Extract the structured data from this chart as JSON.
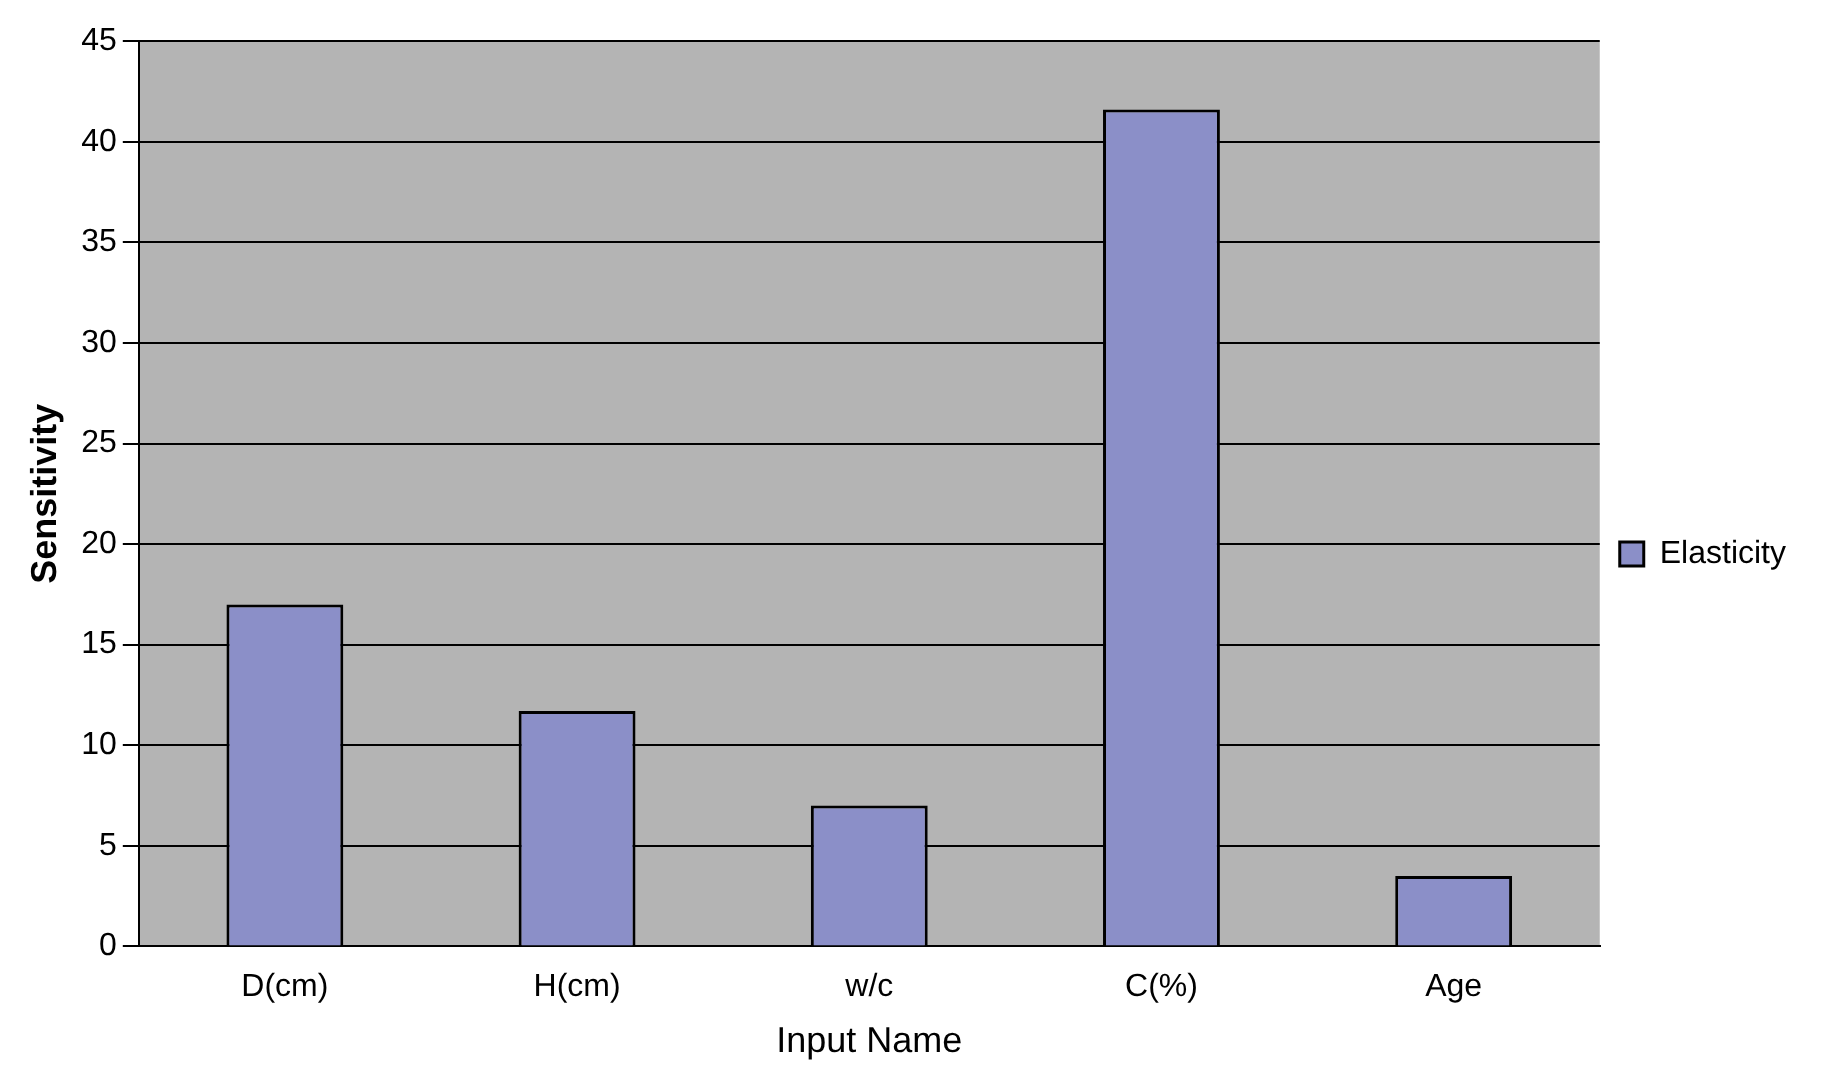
{
  "chart_data": {
    "type": "bar",
    "xlabel": "Input Name",
    "ylabel": "Sensitivity",
    "categories": [
      "D(cm)",
      "H(cm)",
      "w/c",
      "C(%)",
      "Age"
    ],
    "series": [
      {
        "name": "Elasticity",
        "color": "#8b8fc8",
        "values": [
          17,
          11.7,
          7,
          41.6,
          3.5
        ]
      }
    ],
    "ylim": [
      0,
      45
    ],
    "yticks": [
      0,
      5,
      10,
      15,
      20,
      25,
      30,
      35,
      40,
      45
    ],
    "grid": "y",
    "legend": "right"
  }
}
